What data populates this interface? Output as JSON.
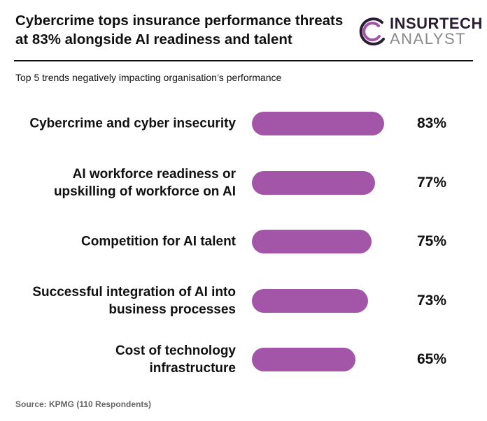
{
  "chart_data": {
    "type": "bar",
    "orientation": "horizontal",
    "title": "Cybercrime tops insurance performance threats at 83% alongside AI readiness and talent",
    "subtitle": "Top 5 trends negatively impacting organisation’s performance",
    "categories": [
      "Cybercrime and cyber insecurity",
      "AI workforce readiness or upskilling of workforce on AI",
      "Competition for AI talent",
      "Successful integration of AI into business processes",
      "Cost of technology infrastructure"
    ],
    "values": [
      83,
      77,
      75,
      73,
      65
    ],
    "value_labels": [
      "83%",
      "77%",
      "75%",
      "73%",
      "65%"
    ],
    "color": "#a355a8",
    "source": "Source: KPMG (110 Respondents)"
  },
  "logo": {
    "line1": "INSURTECH",
    "line2": "ANALYST"
  }
}
